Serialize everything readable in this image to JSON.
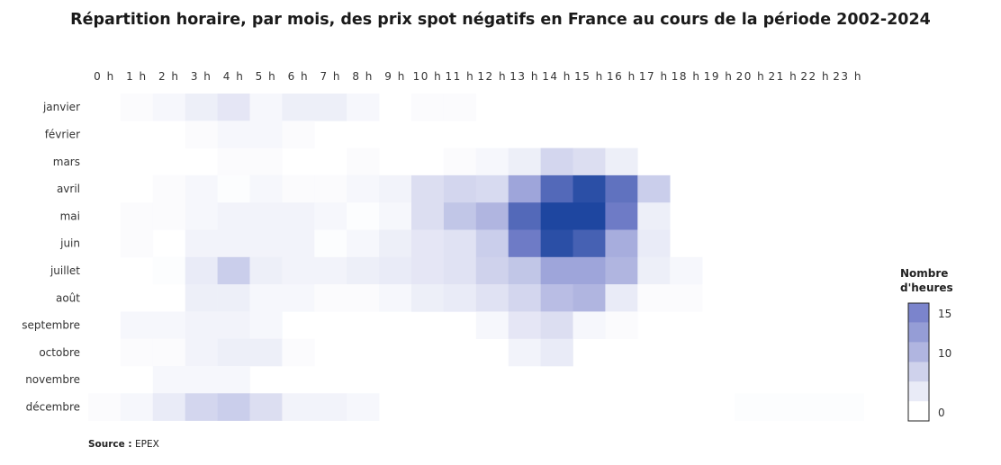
{
  "chart_data": {
    "type": "heatmap",
    "title": "Répartition horaire, par mois, des prix spot négatifs en France au cours de la période 2002-2024",
    "x_labels": [
      "0 h",
      "1 h",
      "2 h",
      "3 h",
      "4 h",
      "5 h",
      "6 h",
      "7 h",
      "8 h",
      "9 h",
      "10 h",
      "11 h",
      "12 h",
      "13 h",
      "14 h",
      "15 h",
      "16 h",
      "17 h",
      "18 h",
      "19 h",
      "20 h",
      "21 h",
      "22 h",
      "23 h"
    ],
    "y_labels": [
      "janvier",
      "février",
      "mars",
      "avril",
      "mai",
      "juin",
      "juillet",
      "août",
      "septembre",
      "octobre",
      "novembre",
      "décembre"
    ],
    "values": [
      [
        0,
        0.5,
        1,
        2,
        3,
        1,
        2,
        2,
        1,
        0,
        0.5,
        0.5,
        0,
        0,
        0,
        0,
        0,
        0,
        0,
        0,
        0,
        0,
        0,
        0
      ],
      [
        0,
        0,
        0,
        0.5,
        1,
        1,
        0.5,
        0,
        0,
        0,
        0,
        0,
        0,
        0,
        0,
        0,
        0,
        0,
        0,
        0,
        0,
        0,
        0,
        0
      ],
      [
        0,
        0,
        0,
        0,
        0.5,
        0.5,
        0,
        0,
        0.5,
        0,
        0,
        0.5,
        1,
        2,
        5,
        4,
        2,
        0,
        0,
        0,
        0,
        0,
        0,
        0
      ],
      [
        0,
        0,
        0.5,
        1,
        0.3,
        1,
        0.5,
        0.5,
        1,
        1.5,
        4,
        5,
        4.5,
        11,
        18,
        21,
        17,
        6,
        0,
        0,
        0,
        0,
        0,
        0
      ],
      [
        0,
        0.5,
        0.5,
        1,
        1.5,
        1.5,
        1.5,
        1,
        0.3,
        1,
        4,
        7,
        9,
        18,
        22,
        22,
        16,
        2,
        0,
        0,
        0,
        0,
        0,
        0
      ],
      [
        0,
        0.5,
        0,
        1.5,
        1.5,
        1.5,
        1.5,
        0.3,
        1,
        2,
        3,
        3.5,
        6,
        16,
        21,
        19,
        10,
        2.5,
        0,
        0,
        0,
        0,
        0,
        0
      ],
      [
        0,
        0,
        0.3,
        2.5,
        6,
        2,
        1.5,
        1.5,
        2,
        2.5,
        3,
        3.5,
        5.5,
        7,
        11,
        11,
        9,
        2,
        1,
        0,
        0,
        0,
        0,
        0
      ],
      [
        0,
        0,
        0,
        2,
        2,
        1,
        1,
        0.5,
        0.5,
        1,
        2,
        2.5,
        3.5,
        5,
        8,
        9,
        2.5,
        0.5,
        0.5,
        0,
        0,
        0,
        0,
        0
      ],
      [
        0,
        1,
        1,
        1.5,
        1.5,
        1,
        0,
        0,
        0,
        0,
        0,
        0,
        1,
        3,
        4,
        1,
        0.5,
        0,
        0,
        0,
        0,
        0,
        0,
        0
      ],
      [
        0,
        0.5,
        0.5,
        1.5,
        2,
        2,
        0.5,
        0,
        0,
        0,
        0,
        0,
        0,
        1.5,
        2.5,
        0,
        0,
        0,
        0,
        0,
        0,
        0,
        0,
        0
      ],
      [
        0,
        0,
        1,
        1,
        1,
        0,
        0,
        0,
        0,
        0,
        0,
        0,
        0,
        0,
        0,
        0,
        0,
        0,
        0,
        0,
        0,
        0,
        0,
        0
      ],
      [
        0.5,
        1,
        2.5,
        5,
        6,
        4,
        1.5,
        1.5,
        1,
        0,
        0,
        0,
        0,
        0,
        0,
        0,
        0,
        0,
        0,
        0,
        0.3,
        0.3,
        0.3,
        0.3
      ]
    ],
    "colorscale": {
      "min_color": "#ffffff",
      "mid_color": "#7b84cc",
      "max_color": "#1e46a0",
      "max": 22
    },
    "legend": {
      "title_line1": "Nombre",
      "title_line2": "d'heures",
      "ticks": [
        "15",
        "10",
        "0"
      ],
      "placement": "right"
    }
  },
  "source": {
    "label": "Source :",
    "value": "EPEX"
  }
}
